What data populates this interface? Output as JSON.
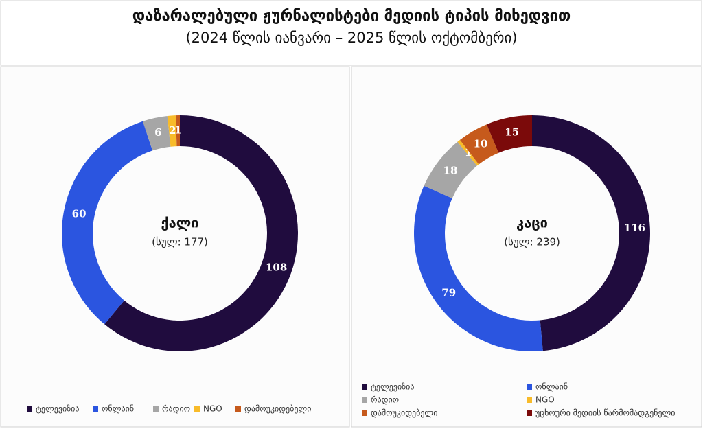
{
  "header": {
    "title": "დაზარალებული ჟურნალისტები მედიის ტიპის მიხედვით",
    "subtitle": "(2024 წლის იანვარი – 2025 წლის ოქტომბერი)"
  },
  "chart_data": [
    {
      "type": "donut",
      "center_label": "ქალი",
      "total_label": "(სულ: 177)",
      "categories": [
        "ტელევიზია",
        "ონლაინ",
        "რადიო",
        "NGO",
        "დამოუკიდებელი"
      ],
      "values": [
        108,
        60,
        6,
        2,
        1
      ],
      "colors": [
        "#200c3e",
        "#2b55e0",
        "#a6a6a6",
        "#f8bb2a",
        "#c65a1c"
      ]
    },
    {
      "type": "donut",
      "center_label": "კაცი",
      "total_label": "(სულ: 239)",
      "categories": [
        "ტელევიზია",
        "ონლაინ",
        "რადიო",
        "NGO",
        "დამოუკიდებელი",
        "უცხოური მედიის წარმომადგენელი"
      ],
      "values": [
        116,
        79,
        18,
        1,
        10,
        15
      ],
      "colors": [
        "#200c3e",
        "#2b55e0",
        "#a6a6a6",
        "#f8bb2a",
        "#c65a1c",
        "#7b0a0a"
      ]
    }
  ]
}
